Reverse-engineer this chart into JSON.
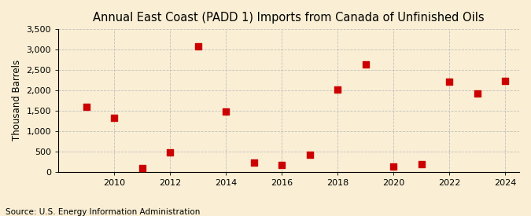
{
  "title": "Annual East Coast (PADD 1) Imports from Canada of Unfinished Oils",
  "ylabel": "Thousand Barrels",
  "source": "Source: U.S. Energy Information Administration",
  "years": [
    2009,
    2010,
    2011,
    2012,
    2013,
    2014,
    2015,
    2016,
    2017,
    2018,
    2019,
    2020,
    2021,
    2022,
    2023,
    2024
  ],
  "values": [
    1600,
    1325,
    100,
    475,
    3075,
    1480,
    225,
    175,
    425,
    2025,
    2625,
    125,
    200,
    2200,
    1925,
    2225
  ],
  "marker_color": "#cc0000",
  "marker_size": 36,
  "background_color": "#faefd4",
  "grid_color": "#bbbbbb",
  "ylim": [
    0,
    3500
  ],
  "yticks": [
    0,
    500,
    1000,
    1500,
    2000,
    2500,
    3000,
    3500
  ],
  "xtick_step": 2,
  "title_fontsize": 10.5,
  "label_fontsize": 8.5,
  "tick_fontsize": 8,
  "source_fontsize": 7.5
}
